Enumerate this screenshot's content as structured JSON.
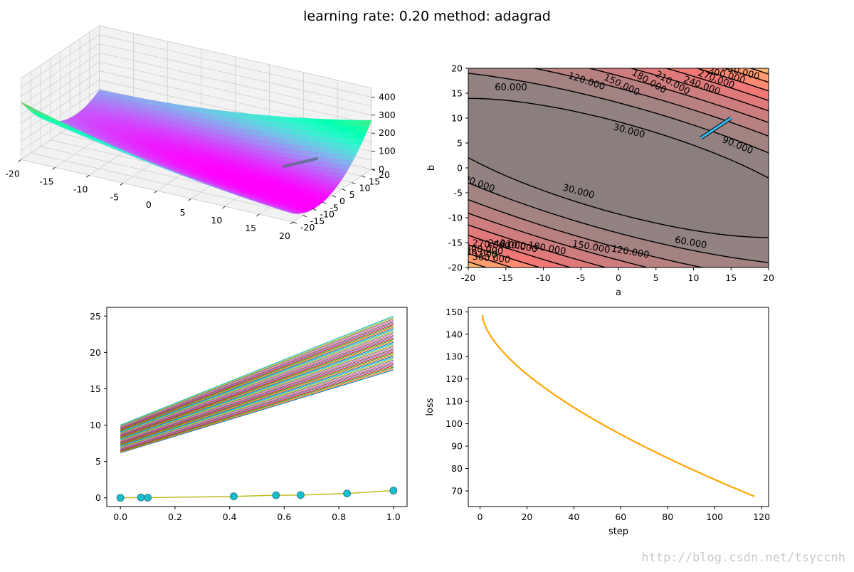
{
  "figure": {
    "suptitle": "learning rate: 0.20 method: adagrad",
    "watermark": "http://blog.csdn.net/tsyccnh"
  },
  "chart_data": [
    {
      "id": "surface3d",
      "type": "surface",
      "colormap": "rainbow",
      "x_range": [
        -20,
        20
      ],
      "y_range": [
        -20,
        20
      ],
      "z_range": [
        0,
        450
      ],
      "x_ticks": [
        -20,
        -15,
        -10,
        -5,
        0,
        5,
        10,
        15,
        20
      ],
      "y_ticks": [
        -20,
        -15,
        -10,
        -5,
        0,
        5,
        10,
        15,
        20
      ],
      "z_ticks": [
        0,
        100,
        200,
        300,
        400
      ],
      "path": {
        "start": [
          15,
          10
        ],
        "end": [
          11,
          6
        ]
      }
    },
    {
      "id": "contour",
      "type": "contour",
      "xlabel": "a",
      "ylabel": "b",
      "xlim": [
        -20,
        20
      ],
      "ylim": [
        -20,
        20
      ],
      "x_ticks": [
        -20,
        -15,
        -10,
        -5,
        0,
        5,
        10,
        15,
        20
      ],
      "y_ticks": [
        -20,
        -15,
        -10,
        -5,
        0,
        5,
        10,
        15,
        20
      ],
      "levels": [
        30,
        60,
        90,
        120,
        150,
        180,
        210,
        240,
        270,
        300,
        330,
        360
      ],
      "level_labels": [
        "30.000",
        "60.000",
        "90.000",
        "120.000",
        "150.000",
        "180.000",
        "210.000",
        "240.000",
        "270.000",
        "300.000",
        "330.000",
        "360.000"
      ],
      "path": {
        "start": [
          15,
          10
        ],
        "end": [
          11,
          6
        ],
        "color": "#1f8fd4"
      }
    },
    {
      "id": "fits",
      "type": "line",
      "xlim": [
        -0.05,
        1.05
      ],
      "ylim": [
        -1.2,
        26.2
      ],
      "x_ticks": [
        0.0,
        0.2,
        0.4,
        0.6,
        0.8,
        1.0
      ],
      "x_tick_labels": [
        "0.0",
        "0.2",
        "0.4",
        "0.6",
        "0.8",
        "1.0"
      ],
      "y_ticks": [
        0,
        5,
        10,
        15,
        20,
        25
      ],
      "fit_lines": {
        "count": 40,
        "first": {
          "b": 10,
          "a": 15
        },
        "last": {
          "b": 6.2,
          "a": 11.4
        }
      },
      "data_points": {
        "x": [
          0.0,
          0.075,
          0.1,
          0.415,
          0.57,
          0.66,
          0.83,
          1.0
        ],
        "y": [
          0.0,
          0.05,
          0.02,
          0.2,
          0.35,
          0.38,
          0.6,
          1.0
        ],
        "color": "#17becf"
      }
    },
    {
      "id": "loss",
      "type": "line",
      "xlabel": "step",
      "ylabel": "loss",
      "xlim": [
        -5,
        123
      ],
      "ylim": [
        63,
        152
      ],
      "x_ticks": [
        0,
        20,
        40,
        60,
        80,
        100,
        120
      ],
      "y_ticks": [
        70,
        80,
        90,
        100,
        110,
        120,
        130,
        140,
        150
      ],
      "series": [
        {
          "color": "#ffa500",
          "start": 148.5,
          "end": 67.5,
          "steps": [
            1,
            117
          ]
        }
      ]
    }
  ]
}
